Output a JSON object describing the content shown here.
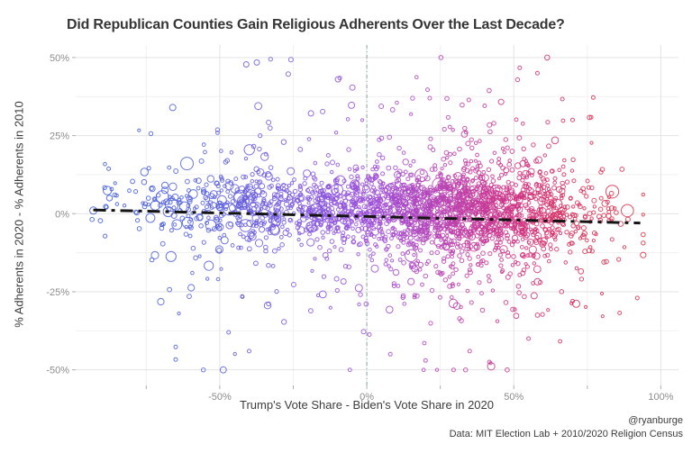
{
  "captions": {
    "handle": "@ryanburge",
    "source": "Data: MIT Election Lab + 2010/2020 Religion Census"
  },
  "chart_data": {
    "type": "scatter",
    "title": "Did Republican Counties Gain Religious Adherents Over the Last Decade?",
    "xlabel": "Trump's Vote Share - Biden's Vote Share in 2020",
    "ylabel": "% Adherents in 2020 - % Adherents in 2010",
    "xlim": [
      -99,
      106
    ],
    "ylim": [
      -55,
      54
    ],
    "x_ticks": [
      {
        "v": -50,
        "label": "-50%"
      },
      {
        "v": 0,
        "label": "0%"
      },
      {
        "v": 50,
        "label": "50%"
      },
      {
        "v": 100,
        "label": "100%"
      }
    ],
    "x_minor": [
      -75,
      -25,
      25,
      75
    ],
    "y_ticks": [
      {
        "v": 50,
        "label": "50%"
      },
      {
        "v": 25,
        "label": "25%"
      },
      {
        "v": 0,
        "label": "0%"
      },
      {
        "v": -25,
        "label": "-25%"
      },
      {
        "v": -50,
        "label": "-50%"
      }
    ],
    "y_minor": [
      37.5,
      12.5,
      -12.5,
      -37.5
    ],
    "grid": {
      "major_color": "#e3e3e3",
      "minor_color": "#f1f1f1",
      "tick_color": "#b0b0b0",
      "tick_label_color": "#8c8c8c"
    },
    "legend": "none",
    "zero_line": {
      "x": 0,
      "color": "#8aa39f",
      "dash": "4 3 1 3",
      "width": 1
    },
    "trend_line": {
      "x1": -93,
      "y1": 1.2,
      "x2": 93,
      "y2": -3.0,
      "color": "#141414",
      "width": 3,
      "dash": "14 6 4 6"
    },
    "color_stops": [
      {
        "x": -95,
        "color": "#3b5bd6"
      },
      {
        "x": -55,
        "color": "#5560da"
      },
      {
        "x": -25,
        "color": "#7b58de"
      },
      {
        "x": 0,
        "color": "#9b4ed8"
      },
      {
        "x": 25,
        "color": "#b843b4"
      },
      {
        "x": 50,
        "color": "#cf3384"
      },
      {
        "x": 70,
        "color": "#d62f5c"
      },
      {
        "x": 95,
        "color": "#da3145"
      }
    ],
    "points_spec": {
      "seed": 20,
      "components": [
        {
          "n": 1250,
          "mean": 38,
          "sd": 20
        },
        {
          "n": 700,
          "mean": 8,
          "sd": 22
        },
        {
          "n": 380,
          "mean": -30,
          "sd": 22
        },
        {
          "n": 90,
          "mean": -58,
          "sd": 13
        },
        {
          "n": 150,
          "uniform": [
            -90,
            90
          ]
        }
      ],
      "x_clip": [
        -94,
        94
      ],
      "y_noise": [
        {
          "p": 0.7,
          "mean": 2.5,
          "sd": 5.5
        },
        {
          "p": 0.2,
          "mean": 0,
          "sd": 12
        },
        {
          "p": 0.08,
          "mean": -2,
          "sd": 20
        },
        {
          "p": 0.02,
          "mean": 0,
          "sd": 30
        }
      ],
      "y_clip": [
        -50,
        50
      ],
      "spread_growth": 170
    },
    "size_spec": {
      "small": [
        1.6,
        2.5
      ],
      "medium": [
        2.6,
        4.2
      ],
      "large": [
        4.4,
        7.2
      ],
      "p_medium": 0.11,
      "p_large": 0.022,
      "left_extra_large": 0.045,
      "left_threshold": -15,
      "stroke_width": 1,
      "opacity": 0.85
    },
    "outliers": [
      {
        "x": -93,
        "y": 1.0,
        "r": 4
      },
      {
        "x": -66,
        "y": 34,
        "r": 3.5
      },
      {
        "x": -41,
        "y": 47.8,
        "r": 3
      },
      {
        "x": -37.4,
        "y": 48.4,
        "r": 3
      },
      {
        "x": -25.8,
        "y": 49.3,
        "r": 2.5
      },
      {
        "x": -26.7,
        "y": 44.7,
        "r": 2.5
      },
      {
        "x": -9.8,
        "y": 43,
        "r": 3
      },
      {
        "x": -4.9,
        "y": 40.4,
        "r": 3
      },
      {
        "x": -5.2,
        "y": 34.7,
        "r": 3.5
      },
      {
        "x": -19,
        "y": 32.1,
        "r": 3
      },
      {
        "x": -15,
        "y": 32.7,
        "r": 2.5
      },
      {
        "x": -33.4,
        "y": 29.2,
        "r": 2.5
      },
      {
        "x": 4.9,
        "y": 34.4,
        "r": 2.5
      },
      {
        "x": 34.7,
        "y": 36.4,
        "r": 2
      },
      {
        "x": 45.7,
        "y": 35.8,
        "r": 3
      },
      {
        "x": 52,
        "y": 46.7,
        "r": 2
      },
      {
        "x": 58,
        "y": 45,
        "r": 2
      },
      {
        "x": 66.5,
        "y": 36.7,
        "r": 2
      },
      {
        "x": 77,
        "y": 37.2,
        "r": 2
      },
      {
        "x": 70,
        "y": 30,
        "r": 2
      },
      {
        "x": 92,
        "y": -27,
        "r": 2
      },
      {
        "x": 86,
        "y": -31.8,
        "r": 2
      },
      {
        "x": -65,
        "y": -42.7,
        "r": 2
      },
      {
        "x": -65,
        "y": -46.7,
        "r": 2
      },
      {
        "x": -47,
        "y": -38,
        "r": 2
      },
      {
        "x": -40,
        "y": -44,
        "r": 2
      },
      {
        "x": 8,
        "y": -45,
        "r": 2
      },
      {
        "x": 20,
        "y": -47,
        "r": 2
      },
      {
        "x": 35,
        "y": -44,
        "r": 2
      },
      {
        "x": 55,
        "y": -40,
        "r": 2
      },
      {
        "x": 70,
        "y": -28,
        "r": 2
      },
      {
        "x": 0.9,
        "y": -38.7,
        "r": 2
      }
    ]
  }
}
